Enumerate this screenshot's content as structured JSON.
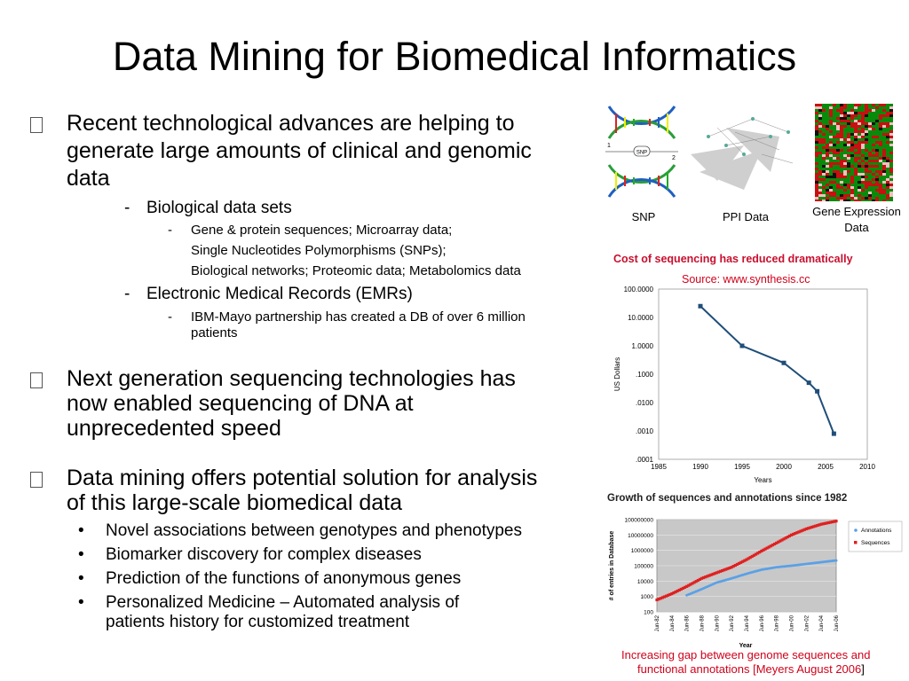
{
  "slide": {
    "title": "Data Mining for Biomedical Informatics",
    "b1": {
      "line1": "Recent technological advances are helping to",
      "line2": "generate large amounts of clinical and genomic",
      "line3": "data",
      "sub1": "Biological data sets",
      "sub1_items": [
        "Gene & protein sequences; Microarray data;",
        "Single Nucleotides Polymorphisms (SNPs);",
        "Biological networks; Proteomic data; Metabolomics data"
      ],
      "sub2": "Electronic Medical Records (EMRs)",
      "sub2_item_line1": "IBM-Mayo partnership has created a DB of over 6 million",
      "sub2_item_line2": "patients",
      "dash": "-"
    },
    "b2": {
      "line1": "Next generation sequencing technologies has",
      "line2": "now enabled sequencing of DNA at",
      "line3": "unprecedented speed"
    },
    "b3": {
      "line1": "Data mining offers potential solution for analysis",
      "line2": "of this large-scale biomedical data",
      "dot": "•",
      "items": [
        "Novel associations between genotypes and phenotypes",
        "Biomarker discovery for complex diseases",
        "Prediction of the functions of anonymous genes",
        "Personalized Medicine – Automated analysis of"
      ],
      "item4_line2": "patients history for customized treatment"
    },
    "images": {
      "snp_label": "SNP",
      "ppi_label": "PPI Data",
      "gene_label_1": "Gene Expression",
      "gene_label_2": "Data",
      "snp_num1": "1",
      "snp_num2": "2",
      "snp_tag": "SNP"
    },
    "footer": {
      "line1": "Increasing gap between genome sequences and",
      "pre": "functional annotations [",
      "cite": "Meyers August 2006",
      "post": "]"
    },
    "colors": {
      "red": "#d0021b",
      "line": "#1f4e79",
      "annotations": "#5aa0e6",
      "sequences": "#e02020"
    }
  },
  "chart_data": [
    {
      "type": "line",
      "title": "Cost of sequencing has reduced dramatically",
      "subtitle": "Source: www.synthesis.cc",
      "ylabel": "US Dollars",
      "xlabel": "Years",
      "yscale": "log",
      "ylim": [
        0.0001,
        100
      ],
      "xlim": [
        1985,
        2010
      ],
      "yticks": [
        "100.0000",
        "10.0000",
        "1.0000",
        ".1000",
        ".0100",
        ".0010",
        ".0001"
      ],
      "xticks": [
        "1985",
        "1990",
        "1995",
        "2000",
        "2005",
        "2010"
      ],
      "x": [
        1990,
        1995,
        2000,
        2003,
        2004,
        2006
      ],
      "y": [
        25,
        1,
        0.25,
        0.05,
        0.025,
        0.0008
      ]
    },
    {
      "type": "scatter",
      "title": "Growth of sequences and annotations since 1982",
      "ylabel": "# of entries in Database",
      "xlabel": "Year",
      "yscale": "log",
      "ylim": [
        100,
        100000000
      ],
      "yticks": [
        "100000000",
        "10000000",
        "1000000",
        "100000",
        "10000",
        "1000",
        "100"
      ],
      "xticks": [
        "Jun-82",
        "Jun-84",
        "Jun-86",
        "Jun-88",
        "Jun-90",
        "Jun-92",
        "Jun-94",
        "Jun-96",
        "Jun-98",
        "Jun-00",
        "Jun-02",
        "Jun-04",
        "Jun-06"
      ],
      "legend_position": "right",
      "series": [
        {
          "name": "Annotations",
          "x": [
            1986,
            1988,
            1990,
            1992,
            1994,
            1996,
            1998,
            2000,
            2002,
            2004,
            2006
          ],
          "y": [
            1200,
            3000,
            8000,
            15000,
            30000,
            55000,
            80000,
            100000,
            130000,
            170000,
            220000
          ]
        },
        {
          "name": "Sequences",
          "x": [
            1982,
            1984,
            1986,
            1988,
            1990,
            1992,
            1994,
            1996,
            1998,
            2000,
            2002,
            2004,
            2006
          ],
          "y": [
            600,
            1500,
            4500,
            15000,
            35000,
            80000,
            250000,
            900000,
            3000000,
            10000000,
            25000000,
            50000000,
            80000000
          ]
        }
      ]
    }
  ]
}
